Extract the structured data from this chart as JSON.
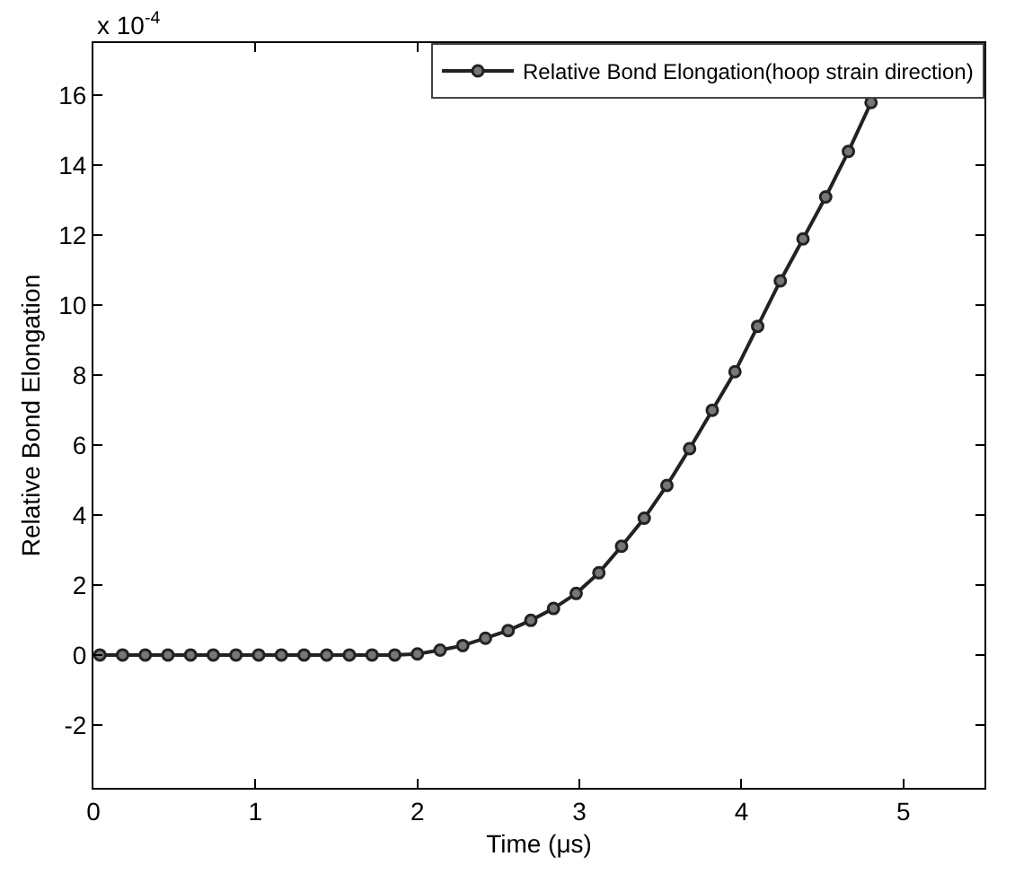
{
  "chart_data": {
    "type": "line",
    "xlabel": "Time (μs)",
    "ylabel": "Relative Bond Elongation",
    "annotations": [
      "x 10$^{-4}$"
    ],
    "x": [
      0.04,
      0.18,
      0.32,
      0.46,
      0.6,
      0.74,
      0.88,
      1.02,
      1.16,
      1.3,
      1.44,
      1.58,
      1.72,
      1.86,
      2.0,
      2.14,
      2.28,
      2.42,
      2.56,
      2.7,
      2.84,
      2.98,
      3.12,
      3.26,
      3.4,
      3.54,
      3.68,
      3.82,
      3.96,
      4.1,
      4.24,
      4.38,
      4.52,
      4.66,
      4.8
    ],
    "series": [
      {
        "name": "Relative Bond Elongation(hoop strain direction)",
        "color": "#222222",
        "values": [
          0,
          0,
          0,
          0,
          0,
          0,
          0,
          0,
          0,
          0,
          0,
          0,
          0,
          0,
          0.03,
          0.14,
          0.27,
          0.48,
          0.7,
          0.99,
          1.33,
          1.76,
          2.35,
          3.11,
          3.91,
          4.85,
          5.9,
          7.0,
          8.1,
          9.4,
          10.7,
          11.9,
          13.1,
          14.4,
          15.8
        ]
      }
    ],
    "xlim": [
      0,
      5.5
    ],
    "ylim": [
      -3.8,
      17.5
    ],
    "xticks": [
      0,
      1,
      2,
      3,
      4,
      5
    ],
    "yticks": [
      -2,
      0,
      2,
      4,
      6,
      8,
      10,
      12,
      14,
      16
    ],
    "grid": false,
    "legend": "top right",
    "marker": "circle",
    "line_style": "solid"
  }
}
